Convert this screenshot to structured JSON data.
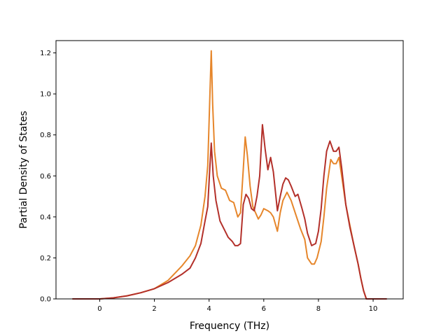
{
  "chart_data": {
    "type": "line",
    "title": "",
    "xlabel": "Frequency (THz)",
    "ylabel": "Partial Density of States",
    "xlim": [
      -1.6,
      11.1
    ],
    "ylim": [
      0.0,
      1.26
    ],
    "xticks": [
      0,
      2,
      4,
      6,
      8,
      10
    ],
    "yticks": [
      0.0,
      0.2,
      0.4,
      0.6,
      0.8,
      1.0,
      1.2
    ],
    "xtick_labels": [
      "0",
      "2",
      "4",
      "6",
      "8",
      "10"
    ],
    "ytick_labels": [
      "0.0",
      "0.2",
      "0.4",
      "0.6",
      "0.8",
      "1.0",
      "1.2"
    ],
    "grid": false,
    "legend": "none",
    "series": [
      {
        "color": "#e6862b",
        "x": [
          -1.0,
          0.0,
          0.5,
          1.0,
          1.5,
          2.0,
          2.5,
          3.0,
          3.3,
          3.5,
          3.7,
          3.85,
          3.95,
          4.03,
          4.08,
          4.13,
          4.2,
          4.3,
          4.45,
          4.6,
          4.75,
          4.9,
          5.05,
          5.15,
          5.25,
          5.32,
          5.4,
          5.5,
          5.6,
          5.7,
          5.8,
          5.9,
          6.0,
          6.15,
          6.25,
          6.35,
          6.5,
          6.6,
          6.7,
          6.85,
          7.0,
          7.15,
          7.35,
          7.5,
          7.6,
          7.75,
          7.85,
          7.95,
          8.1,
          8.2,
          8.3,
          8.45,
          8.55,
          8.65,
          8.75,
          8.85,
          9.0,
          9.15,
          9.3,
          9.45,
          9.55,
          9.65,
          9.75,
          10.0,
          10.5
        ],
        "values": [
          0.0,
          0.0,
          0.005,
          0.015,
          0.03,
          0.05,
          0.09,
          0.16,
          0.21,
          0.26,
          0.36,
          0.5,
          0.65,
          1.0,
          1.21,
          0.95,
          0.72,
          0.6,
          0.54,
          0.53,
          0.48,
          0.47,
          0.4,
          0.42,
          0.63,
          0.79,
          0.7,
          0.55,
          0.45,
          0.42,
          0.39,
          0.41,
          0.44,
          0.43,
          0.42,
          0.4,
          0.33,
          0.42,
          0.48,
          0.52,
          0.48,
          0.42,
          0.34,
          0.29,
          0.2,
          0.17,
          0.17,
          0.2,
          0.28,
          0.4,
          0.54,
          0.68,
          0.66,
          0.66,
          0.69,
          0.6,
          0.46,
          0.36,
          0.26,
          0.17,
          0.1,
          0.04,
          0.0,
          0.0,
          0.0
        ]
      },
      {
        "color": "#b3302a",
        "x": [
          -1.0,
          0.0,
          0.5,
          1.0,
          1.5,
          2.0,
          2.5,
          3.0,
          3.3,
          3.5,
          3.7,
          3.85,
          3.95,
          4.03,
          4.08,
          4.15,
          4.25,
          4.4,
          4.55,
          4.7,
          4.85,
          4.95,
          5.05,
          5.15,
          5.25,
          5.35,
          5.45,
          5.55,
          5.65,
          5.75,
          5.85,
          5.95,
          6.05,
          6.15,
          6.25,
          6.35,
          6.5,
          6.6,
          6.7,
          6.8,
          6.9,
          7.0,
          7.15,
          7.25,
          7.4,
          7.5,
          7.6,
          7.75,
          7.9,
          8.0,
          8.1,
          8.2,
          8.3,
          8.42,
          8.55,
          8.65,
          8.75,
          8.85,
          9.0,
          9.15,
          9.3,
          9.45,
          9.55,
          9.65,
          9.75,
          10.0,
          10.5
        ],
        "values": [
          0.0,
          0.0,
          0.005,
          0.015,
          0.03,
          0.05,
          0.08,
          0.12,
          0.15,
          0.2,
          0.27,
          0.38,
          0.45,
          0.65,
          0.76,
          0.6,
          0.48,
          0.38,
          0.34,
          0.3,
          0.28,
          0.26,
          0.26,
          0.27,
          0.46,
          0.51,
          0.49,
          0.44,
          0.43,
          0.5,
          0.6,
          0.85,
          0.73,
          0.63,
          0.69,
          0.62,
          0.43,
          0.5,
          0.56,
          0.59,
          0.58,
          0.55,
          0.5,
          0.51,
          0.44,
          0.39,
          0.32,
          0.26,
          0.27,
          0.33,
          0.44,
          0.6,
          0.72,
          0.77,
          0.72,
          0.72,
          0.74,
          0.64,
          0.46,
          0.35,
          0.26,
          0.17,
          0.1,
          0.04,
          0.0,
          0.0,
          0.0
        ]
      }
    ]
  }
}
